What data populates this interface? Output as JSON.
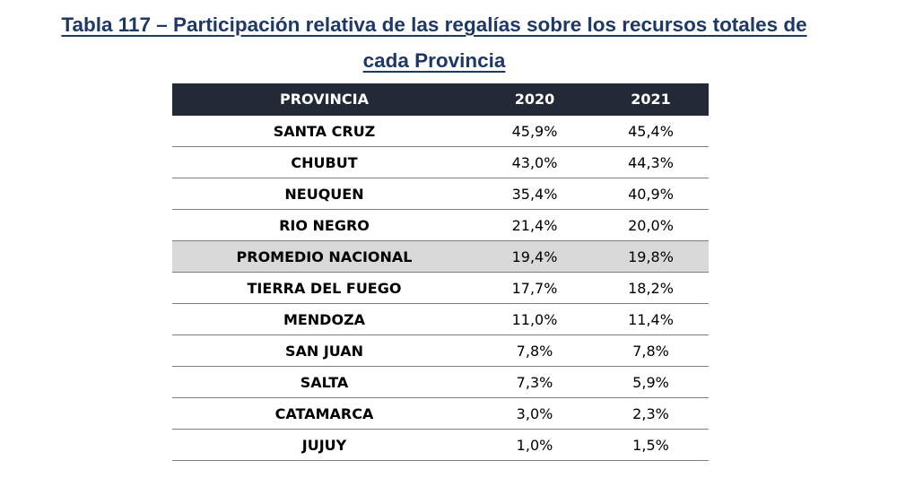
{
  "title": {
    "line1": "Tabla 117 – Participación relativa de las regalías sobre los recursos totales de",
    "line2": "cada Provincia"
  },
  "table": {
    "headers": {
      "province": "PROVINCIA",
      "year1": "2020",
      "year2": "2021"
    },
    "rows": [
      {
        "province": "SANTA CRUZ",
        "y2020": "45,9%",
        "y2021": "45,4%"
      },
      {
        "province": "CHUBUT",
        "y2020": "43,0%",
        "y2021": "44,3%"
      },
      {
        "province": "NEUQUEN",
        "y2020": "35,4%",
        "y2021": "40,9%"
      },
      {
        "province": "RIO NEGRO",
        "y2020": "21,4%",
        "y2021": "20,0%"
      },
      {
        "province": "PROMEDIO NACIONAL",
        "y2020": "19,4%",
        "y2021": "19,8%"
      },
      {
        "province": "TIERRA DEL FUEGO",
        "y2020": "17,7%",
        "y2021": "18,2%"
      },
      {
        "province": "MENDOZA",
        "y2020": "11,0%",
        "y2021": "11,4%"
      },
      {
        "province": "SAN JUAN",
        "y2020": "7,8%",
        "y2021": "7,8%"
      },
      {
        "province": "SALTA",
        "y2020": "7,3%",
        "y2021": "5,9%"
      },
      {
        "province": "CATAMARCA",
        "y2020": "3,0%",
        "y2021": "2,3%"
      },
      {
        "province": "JUJUY",
        "y2020": "1,0%",
        "y2021": "1,5%"
      }
    ]
  },
  "colors": {
    "title": "#1f3864",
    "header_bg": "#222a35",
    "highlight_bg": "#d9d9d9"
  }
}
